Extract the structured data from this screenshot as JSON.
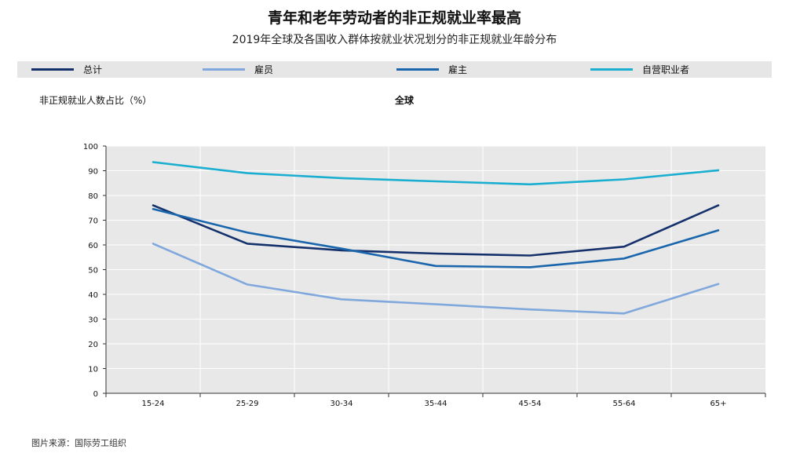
{
  "title": "青年和老年劳动者的非正规就业率最高",
  "subtitle": "2019年全球及各国收入群体按就业状况划分的非正规就业年龄分布",
  "source": "图片来源：国际劳工组织",
  "chart_data": {
    "type": "line",
    "title": "青年和老年劳动者的非正规就业率最高",
    "subtitle": "2019年全球及各国收入群体按就业状况划分的非正规就业年龄分布",
    "panel_title": "全球",
    "ylabel": "非正规就业人数占比（%）",
    "xlabel": "",
    "ylim": [
      0,
      100
    ],
    "yticks": [
      "0",
      "10",
      "20",
      "30",
      "40",
      "50",
      "60",
      "70",
      "80",
      "90",
      "100"
    ],
    "categories": [
      "15-24",
      "25-29",
      "30-34",
      "35-44",
      "45-54",
      "55-64",
      "65+"
    ],
    "grid": true,
    "legend_position": "top",
    "series": [
      {
        "name": "总计",
        "color": "#15316b",
        "values": [
          76,
          60.5,
          57.8,
          56.5,
          55.7,
          59.3,
          76
        ]
      },
      {
        "name": "雇员",
        "color": "#80a8dc",
        "values": [
          60.5,
          44,
          38,
          36,
          33.9,
          32.3,
          44.2
        ]
      },
      {
        "name": "雇主",
        "color": "#1a66ad",
        "values": [
          74.5,
          65,
          58.5,
          51.5,
          51,
          54.5,
          65.9
        ]
      },
      {
        "name": "自营职业者",
        "color": "#1aaed0",
        "values": [
          93.5,
          89,
          87,
          85.7,
          84.5,
          86.5,
          90.2
        ]
      }
    ]
  }
}
